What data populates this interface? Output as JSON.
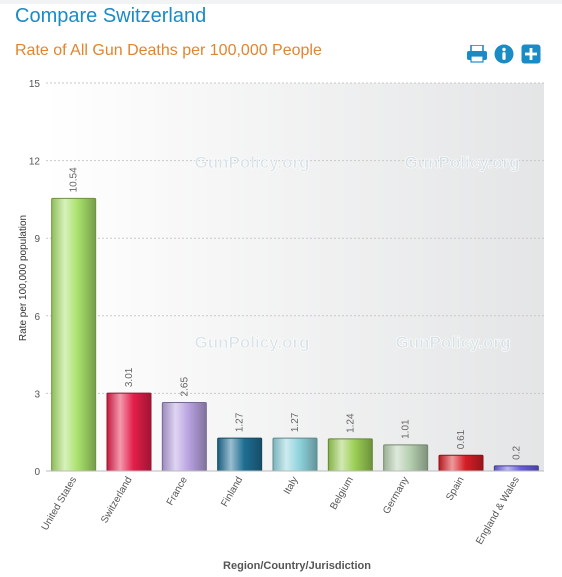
{
  "page": {
    "title": "Compare Switzerland"
  },
  "toolbar": {
    "print_icon": "print-icon",
    "info_icon": "info-icon",
    "add_icon": "plus-icon"
  },
  "colors": {
    "title": "#1a8bc4",
    "subtitle": "#e1852e",
    "toolbar": "#1a8bc4"
  },
  "watermark": "GunPolicy.org",
  "chart_data": {
    "type": "bar",
    "title": "Rate of All Gun Deaths per 100,000 People",
    "xlabel": "Region/Country/Jurisdiction",
    "ylabel": "Rate per 100,000 population",
    "ylim": [
      0,
      15
    ],
    "yticks": [
      0,
      3,
      6,
      9,
      12,
      15
    ],
    "grid": true,
    "legend": "none",
    "categories": [
      "United States",
      "Switzerland",
      "France",
      "Finland",
      "Italy",
      "Belgium",
      "Germany",
      "Spain",
      "England & Wales"
    ],
    "values": [
      10.54,
      3.01,
      2.65,
      1.27,
      1.27,
      1.24,
      1.01,
      0.61,
      0.2
    ],
    "value_labels": [
      "10.54",
      "3.01",
      "2.65",
      "1.27",
      "1.27",
      "1.24",
      "1.01",
      "0.61",
      "0.2"
    ],
    "bar_colors": [
      "#a8e06a",
      "#e41e4a",
      "#b8a2e0",
      "#1f6e94",
      "#8fd3dc",
      "#9ccf55",
      "#b5cfb0",
      "#d61e26",
      "#6a5ee0"
    ]
  }
}
